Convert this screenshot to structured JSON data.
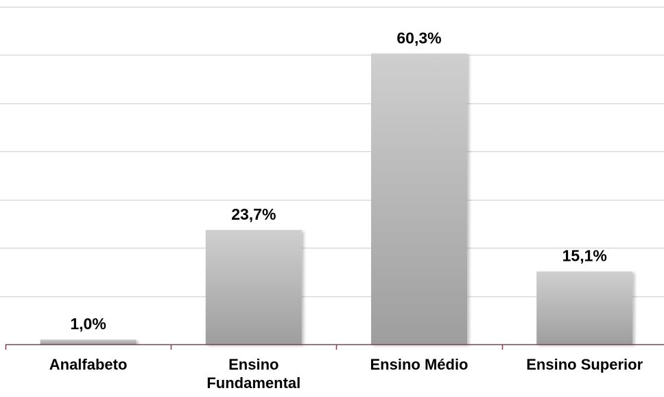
{
  "chart_data": {
    "type": "bar",
    "categories": [
      "Analfabeto",
      "Ensino Fundamental",
      "Ensino Médio",
      "Ensino Superior"
    ],
    "category_lines": [
      [
        "Analfabeto"
      ],
      [
        "Ensino",
        "Fundamental"
      ],
      [
        "Ensino Médio"
      ],
      [
        "Ensino Superior"
      ]
    ],
    "values": [
      1.0,
      23.7,
      60.3,
      15.1
    ],
    "value_labels": [
      "1,0%",
      "23,7%",
      "60,3%",
      "15,1%"
    ],
    "ylim": [
      0,
      70
    ],
    "grid": true,
    "colors": {
      "bar_top": "#cfcfcf",
      "bar_bottom": "#9e9e9e",
      "grid": "#d9d9d9",
      "axis": "#7f3f4f"
    }
  }
}
